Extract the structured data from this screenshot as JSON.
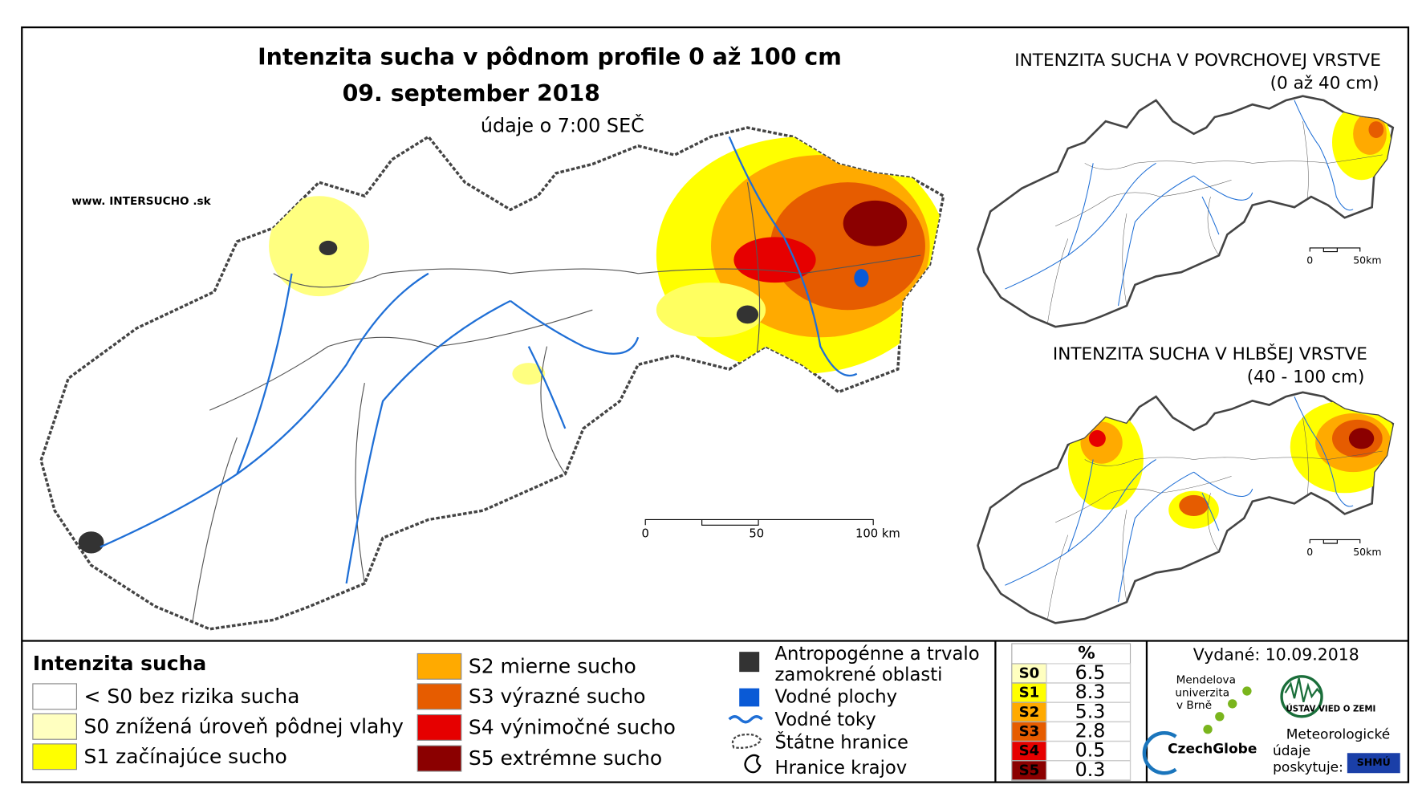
{
  "main_map": {
    "title": "Intenzita sucha v pôdnom profile 0 až 100 cm",
    "date": "09. september 2018",
    "subtitle": "údaje o 7:00 SEČ",
    "website": "www. INTERSUCHO .sk",
    "scale": [
      "0",
      "50",
      "100 km"
    ]
  },
  "inset_maps": [
    {
      "title": "INTENZITA SUCHA V POVRCHOVEJ VRSTVE",
      "subtitle": "(0 až 40 cm)",
      "scale": [
        "0",
        "50km"
      ]
    },
    {
      "title": "INTENZITA SUCHA V HLBŠEJ VRSTVE",
      "subtitle": "(40 - 100 cm)",
      "scale": [
        "0",
        "50km"
      ]
    }
  ],
  "legend": {
    "title": "Intenzita sucha",
    "items": [
      {
        "label": "< S0 bez rizika sucha",
        "color": "#ffffff"
      },
      {
        "label": "S0 znížená úroveň pôdnej vlahy",
        "color": "#ffffc0"
      },
      {
        "label": "S1 začínajúce sucho",
        "color": "#ffff00"
      },
      {
        "label": "S2 mierne sucho",
        "color": "#ffaa00"
      },
      {
        "label": "S3 výrazné sucho",
        "color": "#e65c00"
      },
      {
        "label": "S4 výnimočné sucho",
        "color": "#e60000"
      },
      {
        "label": "S5 extrémne sucho",
        "color": "#8b0000"
      }
    ]
  },
  "symbols": [
    {
      "label": [
        "Antropogénne a trvalo",
        "zamokrené oblasti"
      ]
    },
    {
      "label": [
        "Vodné plochy"
      ]
    },
    {
      "label": [
        "Vodné toky"
      ]
    },
    {
      "label": [
        "Štátne hranice"
      ]
    },
    {
      "label": [
        "Hranice krajov"
      ]
    }
  ],
  "table": {
    "header": "%",
    "rows": [
      {
        "class": "S0",
        "value": 6.5,
        "color": "#ffffc0"
      },
      {
        "class": "S1",
        "value": 8.3,
        "color": "#ffff00"
      },
      {
        "class": "S2",
        "value": 5.3,
        "color": "#ffaa00"
      },
      {
        "class": "S3",
        "value": 2.8,
        "color": "#e65c00"
      },
      {
        "class": "S4",
        "value": 0.5,
        "color": "#e60000"
      },
      {
        "class": "S5",
        "value": 0.3,
        "color": "#8b0000"
      }
    ]
  },
  "footer": {
    "issued": "Vydané: 10.09.2018",
    "university": [
      "Mendelova",
      "univerzita",
      "v Brně"
    ],
    "czechglobe": "CzechGlobe",
    "institute": "ÚSTAV VIED O ZEMI",
    "meteo": [
      "Meteorologické",
      "údaje",
      "poskytuje:"
    ],
    "provider": "SHMÚ"
  }
}
